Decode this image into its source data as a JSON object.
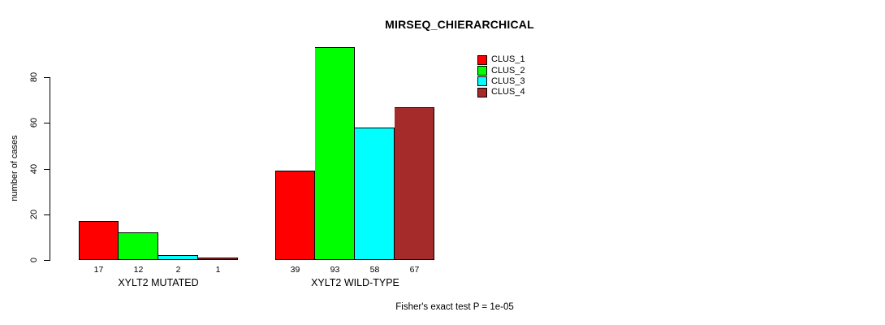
{
  "title": "MIRSEQ_CHIERARCHICAL",
  "y_axis": {
    "label": "number of cases",
    "tick_labels": [
      "0",
      "20",
      "40",
      "60",
      "80"
    ]
  },
  "footer": "Fisher's exact test P = 1e-05",
  "legend": {
    "items": [
      {
        "label": "CLUS_1",
        "color": "#FF0000"
      },
      {
        "label": "CLUS_2",
        "color": "#00FF00"
      },
      {
        "label": "CLUS_3",
        "color": "#00FFFF"
      },
      {
        "label": "CLUS_4",
        "color": "#A52A2A"
      }
    ]
  },
  "chart_data": {
    "type": "bar",
    "title": "MIRSEQ_CHIERARCHICAL",
    "ylabel": "number of cases",
    "xlabel": "",
    "yticks": [
      0,
      20,
      40,
      60,
      80
    ],
    "ylim": [
      0,
      93
    ],
    "grid": false,
    "legend_position": "top-right",
    "legend_labels": [
      "CLUS_1",
      "CLUS_2",
      "CLUS_3",
      "CLUS_4"
    ],
    "series_colors": [
      "#FF0000",
      "#00FF00",
      "#00FFFF",
      "#A52A2A"
    ],
    "bar_border_color": "#000000",
    "groups": [
      {
        "label": "XYLT2 MUTATED",
        "values": [
          17,
          12,
          2,
          1
        ]
      },
      {
        "label": "XYLT2 WILD-TYPE",
        "values": [
          39,
          93,
          58,
          67
        ]
      }
    ],
    "annotation": "Fisher's exact test P = 1e-05"
  }
}
